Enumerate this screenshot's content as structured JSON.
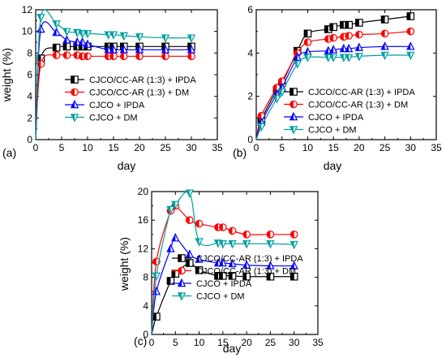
{
  "chart_data": [
    {
      "panel_label": "(a)",
      "type": "line",
      "xlabel": "day",
      "ylabel": "weight (%)",
      "xlim": [
        0,
        35
      ],
      "ylim": [
        0,
        12
      ],
      "xticks": [
        0,
        5,
        10,
        15,
        20,
        25,
        30,
        35
      ],
      "yticks": [
        0,
        2,
        4,
        6,
        8,
        10,
        12
      ],
      "legend_position": "lower-right",
      "series": [
        {
          "name": "CJCO/CC-AR (1:3) + IPDA",
          "color": "#000000",
          "marker": "square",
          "x": [
            0,
            1,
            4,
            6,
            8,
            9,
            10,
            14,
            15,
            17,
            20,
            25,
            30
          ],
          "y": [
            0,
            7.5,
            8.5,
            8.6,
            8.6,
            8.6,
            8.6,
            8.6,
            8.6,
            8.6,
            8.6,
            8.6,
            8.6
          ]
        },
        {
          "name": "CJCO/CC-AR (1:3) + DM",
          "color": "#ff0000",
          "marker": "circle",
          "x": [
            0,
            1,
            4,
            6,
            8,
            9,
            10,
            14,
            15,
            17,
            20,
            25,
            30
          ],
          "y": [
            0,
            7.0,
            7.8,
            7.8,
            7.8,
            7.7,
            7.7,
            7.7,
            7.7,
            7.7,
            7.7,
            7.7,
            7.7
          ]
        },
        {
          "name": "CJCO + IPDA",
          "color": "#0000ff",
          "marker": "triangle-up",
          "x": [
            0,
            1,
            4,
            6,
            8,
            9,
            10,
            14,
            15,
            17,
            20,
            25,
            30
          ],
          "y": [
            0,
            10.2,
            9.9,
            9.2,
            9.0,
            9.0,
            8.8,
            8.3,
            8.3,
            8.3,
            8.3,
            8.3,
            8.3
          ]
        },
        {
          "name": "CJCO + DM",
          "color": "#00a0a0",
          "marker": "triangle-down",
          "x": [
            0,
            1,
            4,
            6,
            8,
            9,
            10,
            14,
            15,
            17,
            20,
            25,
            30
          ],
          "y": [
            0,
            11.3,
            10.7,
            10.0,
            9.9,
            9.8,
            9.8,
            9.7,
            9.7,
            9.6,
            9.5,
            9.4,
            9.4
          ]
        }
      ]
    },
    {
      "panel_label": "(b)",
      "type": "line",
      "xlabel": "day",
      "ylabel": "",
      "xlim": [
        0,
        35
      ],
      "ylim": [
        0,
        6
      ],
      "xticks": [
        0,
        5,
        10,
        15,
        20,
        25,
        30,
        35
      ],
      "yticks": [
        0,
        2,
        4,
        6
      ],
      "legend_position": "lower-right",
      "series": [
        {
          "name": "CJCO/CC-AR (1:3) + IPDA",
          "color": "#000000",
          "marker": "square",
          "x": [
            0,
            1,
            4,
            5,
            8,
            10,
            14,
            15,
            17,
            18,
            20,
            25,
            30
          ],
          "y": [
            0,
            0.9,
            2.3,
            2.6,
            4.1,
            4.9,
            5.1,
            5.2,
            5.3,
            5.3,
            5.4,
            5.55,
            5.7
          ]
        },
        {
          "name": "CJCO/CC-AR (1:3) + DM",
          "color": "#ff0000",
          "marker": "circle",
          "x": [
            0,
            1,
            4,
            5,
            8,
            10,
            14,
            15,
            17,
            18,
            20,
            25,
            30
          ],
          "y": [
            0,
            1.1,
            2.4,
            2.7,
            4.0,
            4.5,
            4.65,
            4.7,
            4.75,
            4.8,
            4.85,
            4.9,
            5.0
          ]
        },
        {
          "name": "CJCO + IPDA",
          "color": "#0000ff",
          "marker": "triangle-up",
          "x": [
            0,
            1,
            4,
            5,
            8,
            10,
            14,
            15,
            17,
            18,
            20,
            25,
            30
          ],
          "y": [
            0,
            0.8,
            2.1,
            2.4,
            3.8,
            4.05,
            4.1,
            4.15,
            4.2,
            4.2,
            4.25,
            4.3,
            4.3
          ]
        },
        {
          "name": "CJCO + DM",
          "color": "#00a0a0",
          "marker": "triangle-down",
          "x": [
            0,
            1,
            4,
            5,
            8,
            10,
            14,
            15,
            17,
            18,
            20,
            25,
            30
          ],
          "y": [
            0,
            0.6,
            1.9,
            2.2,
            3.5,
            3.8,
            3.8,
            3.8,
            3.8,
            3.8,
            3.85,
            3.9,
            3.9
          ]
        }
      ]
    },
    {
      "panel_label": "(c)",
      "type": "line",
      "xlabel": "day",
      "ylabel": "weight (%)",
      "xlim": [
        0,
        35
      ],
      "ylim": [
        0,
        20
      ],
      "xticks": [
        0,
        5,
        10,
        15,
        20,
        25,
        30,
        35
      ],
      "yticks": [
        0,
        4,
        8,
        12,
        16,
        20
      ],
      "legend_position": "lower-right",
      "series": [
        {
          "name": "CJCO/CC-AR (1:3) + IPDA",
          "color": "#000000",
          "marker": "square",
          "x": [
            0,
            1,
            4,
            5,
            8,
            10,
            14,
            15,
            17,
            20,
            25,
            30
          ],
          "y": [
            0,
            2.5,
            7.5,
            8.5,
            10.0,
            9.0,
            8.2,
            8.2,
            8.2,
            8.1,
            8.1,
            8.1
          ]
        },
        {
          "name": "CJCO/CC-AR (1:3) + DM",
          "color": "#ff0000",
          "marker": "circle",
          "x": [
            0,
            1,
            4,
            5,
            8,
            10,
            14,
            15,
            17,
            20,
            25,
            30
          ],
          "y": [
            0,
            10.2,
            17.3,
            18.0,
            16.0,
            15.5,
            15.0,
            15.0,
            14.5,
            14.0,
            14.0,
            14.0
          ]
        },
        {
          "name": "CJCO + IPDA",
          "color": "#0000ff",
          "marker": "triangle-up",
          "x": [
            0,
            1,
            4,
            5,
            8,
            10,
            14,
            15,
            17,
            20,
            25,
            30
          ],
          "y": [
            0,
            6.0,
            12.0,
            13.5,
            11.2,
            10.5,
            10.0,
            10.0,
            9.9,
            9.7,
            9.6,
            9.6
          ]
        },
        {
          "name": "CJCO + DM",
          "color": "#00a0a0",
          "marker": "triangle-down",
          "x": [
            0,
            1,
            4,
            5,
            8,
            10,
            14,
            15,
            17,
            20,
            25,
            30
          ],
          "y": [
            0,
            8.2,
            17.5,
            18.2,
            19.8,
            13.0,
            12.8,
            12.7,
            12.7,
            12.7,
            12.7,
            12.6
          ]
        }
      ]
    }
  ]
}
